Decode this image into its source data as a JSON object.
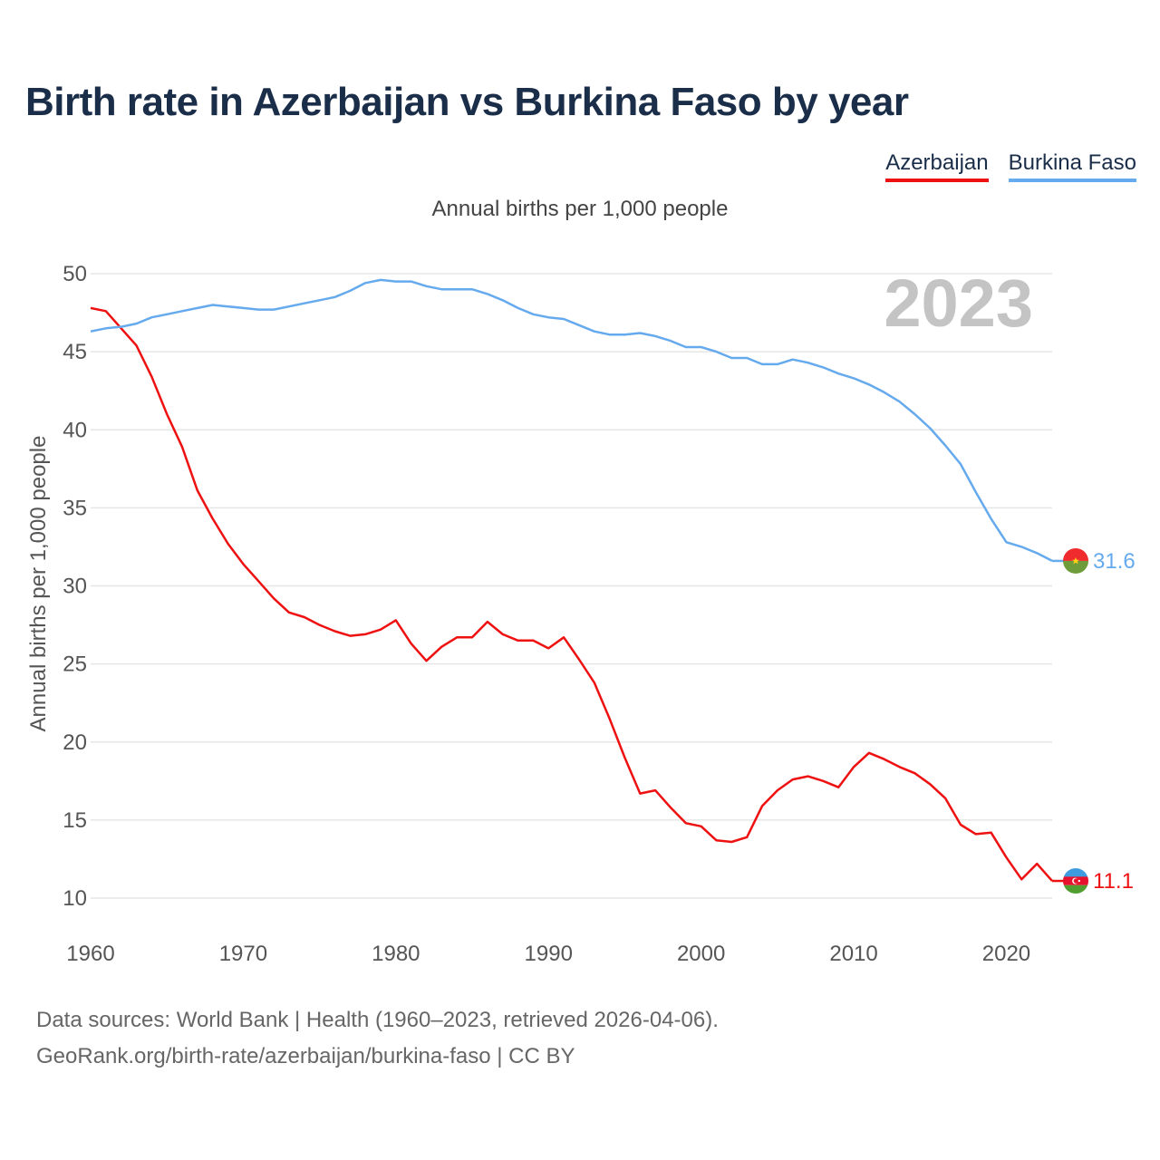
{
  "title": "Birth rate in Azerbaijan vs Burkina Faso by year",
  "legend": {
    "azerbaijan": "Azerbaijan",
    "burkina_faso": "Burkina Faso"
  },
  "colors": {
    "azerbaijan": "#ee1111",
    "burkina_faso": "#66aaee"
  },
  "source": {
    "line1": "Data sources: World Bank | Health (1960–2023, retrieved 2026-04-06).",
    "line2": "GeoRank.org/birth-rate/azerbaijan/burkina-faso | CC BY"
  },
  "flag_icons": {
    "azerbaijan": "azerbaijan-flag-icon",
    "burkina_faso": "burkina-faso-flag-icon"
  },
  "chart_data": {
    "type": "line",
    "title": "Annual births per 1,000 people",
    "xlabel": "",
    "ylabel": "Annual births per 1,000 people",
    "watermark": "2023",
    "xlim": [
      1960,
      2023
    ],
    "ylim": [
      10,
      50
    ],
    "xticks": [
      1960,
      1970,
      1980,
      1990,
      2000,
      2010,
      2020
    ],
    "yticks": [
      10,
      15,
      20,
      25,
      30,
      35,
      40,
      45,
      50
    ],
    "x": [
      1960,
      1961,
      1962,
      1963,
      1964,
      1965,
      1966,
      1967,
      1968,
      1969,
      1970,
      1971,
      1972,
      1973,
      1974,
      1975,
      1976,
      1977,
      1978,
      1979,
      1980,
      1981,
      1982,
      1983,
      1984,
      1985,
      1986,
      1987,
      1988,
      1989,
      1990,
      1991,
      1992,
      1993,
      1994,
      1995,
      1996,
      1997,
      1998,
      1999,
      2000,
      2001,
      2002,
      2003,
      2004,
      2005,
      2006,
      2007,
      2008,
      2009,
      2010,
      2011,
      2012,
      2013,
      2014,
      2015,
      2016,
      2017,
      2018,
      2019,
      2020,
      2021,
      2022,
      2023
    ],
    "series": [
      {
        "name": "Azerbaijan",
        "end_label": "11.1",
        "values": [
          47.8,
          47.6,
          46.5,
          45.4,
          43.4,
          41.0,
          38.9,
          36.1,
          34.3,
          32.7,
          31.4,
          30.3,
          29.2,
          28.3,
          28.0,
          27.5,
          27.1,
          26.8,
          26.9,
          27.2,
          27.8,
          26.3,
          25.2,
          26.1,
          26.7,
          26.7,
          27.7,
          26.9,
          26.5,
          26.5,
          26.0,
          26.7,
          25.3,
          23.8,
          21.5,
          19.0,
          16.7,
          16.9,
          15.8,
          14.8,
          14.6,
          13.7,
          13.6,
          13.9,
          15.9,
          16.9,
          17.6,
          17.8,
          17.5,
          17.1,
          18.4,
          19.3,
          18.9,
          18.4,
          18.0,
          17.3,
          16.4,
          14.7,
          14.1,
          14.2,
          12.6,
          11.2,
          12.2,
          11.1
        ]
      },
      {
        "name": "Burkina Faso",
        "end_label": "31.6",
        "values": [
          46.3,
          46.5,
          46.6,
          46.8,
          47.2,
          47.4,
          47.6,
          47.8,
          48.0,
          47.9,
          47.8,
          47.7,
          47.7,
          47.9,
          48.1,
          48.3,
          48.5,
          48.9,
          49.4,
          49.6,
          49.5,
          49.5,
          49.2,
          49.0,
          49.0,
          49.0,
          48.7,
          48.3,
          47.8,
          47.4,
          47.2,
          47.1,
          46.7,
          46.3,
          46.1,
          46.1,
          46.2,
          46.0,
          45.7,
          45.3,
          45.3,
          45.0,
          44.6,
          44.6,
          44.2,
          44.2,
          44.5,
          44.3,
          44.0,
          43.6,
          43.3,
          42.9,
          42.4,
          41.8,
          41.0,
          40.1,
          39.0,
          37.8,
          36.0,
          34.3,
          32.8,
          32.5,
          32.1,
          31.6
        ]
      }
    ]
  }
}
